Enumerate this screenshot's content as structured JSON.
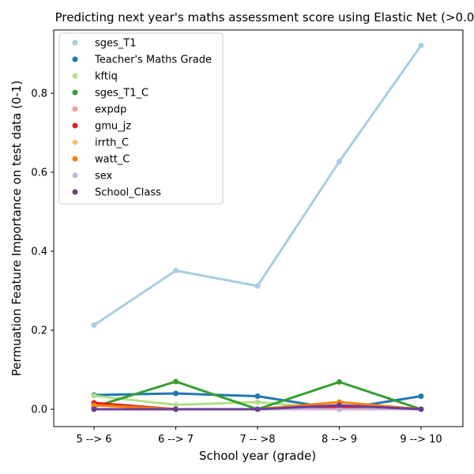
{
  "chart_data": {
    "type": "line",
    "title": "Predicting next year's maths assessment score using Elastic Net (>0.0",
    "xlabel": "School year (grade)",
    "ylabel": "Permuation Feature Importance on test data (0-1)",
    "categories": [
      "5 --> 6",
      "6 --> 7",
      "7 -- >8",
      "8 --> 9",
      "9 --> 10"
    ],
    "yticks": [
      "0.0",
      "0.2",
      "0.4",
      "0.6",
      "0.8"
    ],
    "ylim": [
      -0.044,
      0.96
    ],
    "grid": false,
    "legend_position": "top-left",
    "series": [
      {
        "name": "sges_T1",
        "color": "#a6cee3",
        "values": [
          0.213,
          0.351,
          0.312,
          0.627,
          0.921
        ]
      },
      {
        "name": "Teacher's Maths Grade",
        "color": "#1f78b4",
        "values": [
          0.036,
          0.04,
          0.033,
          0.0,
          0.033
        ]
      },
      {
        "name": "kftiq",
        "color": "#b2df8a",
        "values": [
          0.034,
          0.011,
          0.018,
          0.0,
          0.0
        ]
      },
      {
        "name": "sges_T1_C",
        "color": "#33a02c",
        "values": [
          0.006,
          0.07,
          0.0,
          0.069,
          0.0
        ]
      },
      {
        "name": "expdp",
        "color": "#fb9a99",
        "values": [
          0.0,
          0.0,
          0.0,
          0.0,
          0.0
        ]
      },
      {
        "name": "gmu_jz",
        "color": "#e31a1c",
        "values": [
          0.016,
          0.0,
          0.0,
          0.006,
          0.0
        ]
      },
      {
        "name": "irrth_C",
        "color": "#fdbf6f",
        "values": [
          0.0,
          0.0,
          0.0,
          0.0,
          0.0
        ]
      },
      {
        "name": "watt_C",
        "color": "#ff7f00",
        "values": [
          0.01,
          0.0,
          0.0,
          0.018,
          0.0
        ]
      },
      {
        "name": "sex",
        "color": "#cab2d6",
        "values": [
          0.0,
          0.0,
          0.0,
          0.0,
          0.0
        ]
      },
      {
        "name": "School_Class",
        "color": "#6a3d9a",
        "values": [
          0.0,
          0.0,
          0.0,
          0.01,
          0.0
        ]
      }
    ]
  }
}
